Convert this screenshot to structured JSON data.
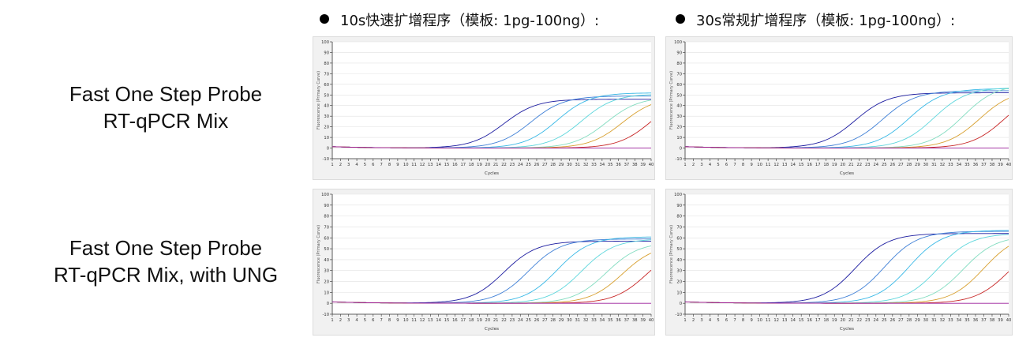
{
  "column_headers": [
    "10s快速扩增程序（模板: 1pg-100ng）:",
    "30s常规扩增程序（模板: 1pg-100ng）:"
  ],
  "row_labels": [
    [
      "Fast One Step Probe",
      "RT-qPCR Mix"
    ],
    [
      "Fast One Step Probe",
      "RT-qPCR Mix, with UNG"
    ]
  ],
  "colors": {
    "series": [
      "#1c1ca0",
      "#3e7fd6",
      "#38b8e6",
      "#5cd6dc",
      "#82dcc0",
      "#d8a030",
      "#c82828",
      "#9a1e9a"
    ]
  },
  "chart_data": [
    {
      "type": "line",
      "xlabel": "Cycles",
      "ylabel": "Fluorescence (Primary Curve)",
      "xlim": [
        1,
        40
      ],
      "ylim": [
        -10,
        100
      ],
      "yticks": [
        -10,
        0,
        10,
        20,
        30,
        40,
        50,
        60,
        70,
        80,
        90,
        100
      ],
      "xticks": [
        1,
        2,
        3,
        4,
        5,
        6,
        7,
        8,
        9,
        10,
        11,
        12,
        13,
        14,
        15,
        16,
        17,
        18,
        19,
        20,
        21,
        22,
        23,
        24,
        25,
        26,
        27,
        28,
        29,
        30,
        31,
        32,
        33,
        34,
        35,
        36,
        37,
        38,
        39,
        40
      ],
      "series": [
        {
          "plateau": 46,
          "midpoint": 22,
          "slope": 0.5
        },
        {
          "plateau": 49,
          "midpoint": 25.3,
          "slope": 0.5
        },
        {
          "plateau": 52,
          "midpoint": 28.5,
          "slope": 0.5
        },
        {
          "plateau": 51,
          "midpoint": 31.5,
          "slope": 0.5
        },
        {
          "plateau": 48,
          "midpoint": 34.5,
          "slope": 0.5
        },
        {
          "plateau": 48,
          "midpoint": 36.5,
          "slope": 0.5
        },
        {
          "plateau": 50,
          "midpoint": 40,
          "slope": 0.5
        },
        {
          "plateau": 0,
          "midpoint": 40,
          "slope": 0.5
        }
      ]
    },
    {
      "type": "line",
      "xlabel": "Cycles",
      "ylabel": "Fluorescence (Primary Curve)",
      "xlim": [
        1,
        40
      ],
      "ylim": [
        -10,
        100
      ],
      "yticks": [
        -10,
        0,
        10,
        20,
        30,
        40,
        50,
        60,
        70,
        80,
        90,
        100
      ],
      "xticks": [
        1,
        2,
        3,
        4,
        5,
        6,
        7,
        8,
        9,
        10,
        11,
        12,
        13,
        14,
        15,
        16,
        17,
        18,
        19,
        20,
        21,
        22,
        23,
        24,
        25,
        26,
        27,
        28,
        29,
        30,
        31,
        32,
        33,
        34,
        35,
        36,
        37,
        38,
        39,
        40
      ],
      "series": [
        {
          "plateau": 52,
          "midpoint": 21.5,
          "slope": 0.5
        },
        {
          "plateau": 54,
          "midpoint": 24.8,
          "slope": 0.5
        },
        {
          "plateau": 56,
          "midpoint": 28,
          "slope": 0.5
        },
        {
          "plateau": 57,
          "midpoint": 31,
          "slope": 0.5
        },
        {
          "plateau": 60,
          "midpoint": 34.5,
          "slope": 0.5
        },
        {
          "plateau": 55,
          "midpoint": 36.5,
          "slope": 0.5
        },
        {
          "plateau": 55,
          "midpoint": 39.5,
          "slope": 0.5
        },
        {
          "plateau": 0,
          "midpoint": 40,
          "slope": 0.5
        }
      ]
    },
    {
      "type": "line",
      "xlabel": "Cycles",
      "ylabel": "Fluorescence (Primary Curve)",
      "xlim": [
        1,
        40
      ],
      "ylim": [
        -10,
        100
      ],
      "yticks": [
        -10,
        0,
        10,
        20,
        30,
        40,
        50,
        60,
        70,
        80,
        90,
        100
      ],
      "xticks": [
        1,
        2,
        3,
        4,
        5,
        6,
        7,
        8,
        9,
        10,
        11,
        12,
        13,
        14,
        15,
        16,
        17,
        18,
        19,
        20,
        21,
        22,
        23,
        24,
        25,
        26,
        27,
        28,
        29,
        30,
        31,
        32,
        33,
        34,
        35,
        36,
        37,
        38,
        39,
        40
      ],
      "series": [
        {
          "plateau": 57,
          "midpoint": 22,
          "slope": 0.5
        },
        {
          "plateau": 59,
          "midpoint": 25,
          "slope": 0.5
        },
        {
          "plateau": 61,
          "midpoint": 28.5,
          "slope": 0.5
        },
        {
          "plateau": 59,
          "midpoint": 31.5,
          "slope": 0.5
        },
        {
          "plateau": 56,
          "midpoint": 34.5,
          "slope": 0.5
        },
        {
          "plateau": 54,
          "midpoint": 36.5,
          "slope": 0.5
        },
        {
          "plateau": 54,
          "midpoint": 39.5,
          "slope": 0.5
        },
        {
          "plateau": 0,
          "midpoint": 40,
          "slope": 0.5
        }
      ]
    },
    {
      "type": "line",
      "xlabel": "Cycles",
      "ylabel": "Fluorescence (Primary Curve)",
      "xlim": [
        1,
        40
      ],
      "ylim": [
        -10,
        100
      ],
      "yticks": [
        -10,
        0,
        10,
        20,
        30,
        40,
        50,
        60,
        70,
        80,
        90,
        100
      ],
      "xticks": [
        1,
        2,
        3,
        4,
        5,
        6,
        7,
        8,
        9,
        10,
        11,
        12,
        13,
        14,
        15,
        16,
        17,
        18,
        19,
        20,
        21,
        22,
        23,
        24,
        25,
        26,
        27,
        28,
        29,
        30,
        31,
        32,
        33,
        34,
        35,
        36,
        37,
        38,
        39,
        40
      ],
      "series": [
        {
          "plateau": 64,
          "midpoint": 21.5,
          "slope": 0.5
        },
        {
          "plateau": 66,
          "midpoint": 25,
          "slope": 0.5
        },
        {
          "plateau": 67,
          "midpoint": 28,
          "slope": 0.5
        },
        {
          "plateau": 64,
          "midpoint": 31.5,
          "slope": 0.5
        },
        {
          "plateau": 62,
          "midpoint": 34.5,
          "slope": 0.5
        },
        {
          "plateau": 64,
          "midpoint": 37,
          "slope": 0.5
        },
        {
          "plateau": 58,
          "midpoint": 40,
          "slope": 0.5
        },
        {
          "plateau": 0,
          "midpoint": 40,
          "slope": 0.5
        }
      ]
    }
  ]
}
